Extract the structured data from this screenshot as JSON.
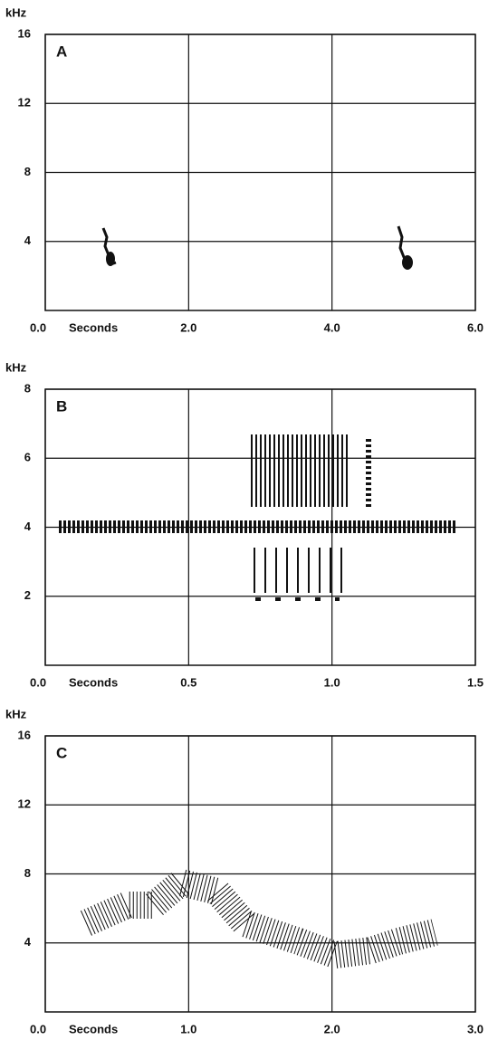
{
  "chart_data": [
    {
      "type": "spectrogram",
      "title": "A",
      "xlabel": "Seconds",
      "ylabel": "kHz",
      "xlim": [
        0,
        6
      ],
      "xticks": [
        {
          "value": 0,
          "label": "0.0"
        },
        {
          "value": 2,
          "label": "2.0"
        },
        {
          "value": 4,
          "label": "4.0"
        },
        {
          "value": 6,
          "label": "6.0"
        }
      ],
      "ylim": [
        0,
        16
      ],
      "yticks": [
        4,
        8,
        12,
        16
      ],
      "grid": true
    },
    {
      "type": "spectrogram",
      "title": "B",
      "xlabel": "Seconds",
      "ylabel": "kHz",
      "xlim": [
        0,
        1.5
      ],
      "xticks": [
        {
          "value": 0,
          "label": "0.0"
        },
        {
          "value": 0.5,
          "label": "0.5"
        },
        {
          "value": 1,
          "label": "1.0"
        },
        {
          "value": 1.5,
          "label": "1.5"
        }
      ],
      "ylim": [
        0,
        8
      ],
      "yticks": [
        2,
        4,
        6,
        8
      ],
      "grid": true
    },
    {
      "type": "spectrogram",
      "title": "C",
      "xlabel": "Seconds",
      "ylabel": "kHz",
      "xlim": [
        0,
        3
      ],
      "xticks": [
        {
          "value": 0,
          "label": "0.0"
        },
        {
          "value": 1,
          "label": "1.0"
        },
        {
          "value": 2,
          "label": "2.0"
        },
        {
          "value": 3,
          "label": "3.0"
        }
      ],
      "ylim": [
        0,
        16
      ],
      "yticks": [
        4,
        8,
        12,
        16
      ],
      "grid": true
    }
  ]
}
